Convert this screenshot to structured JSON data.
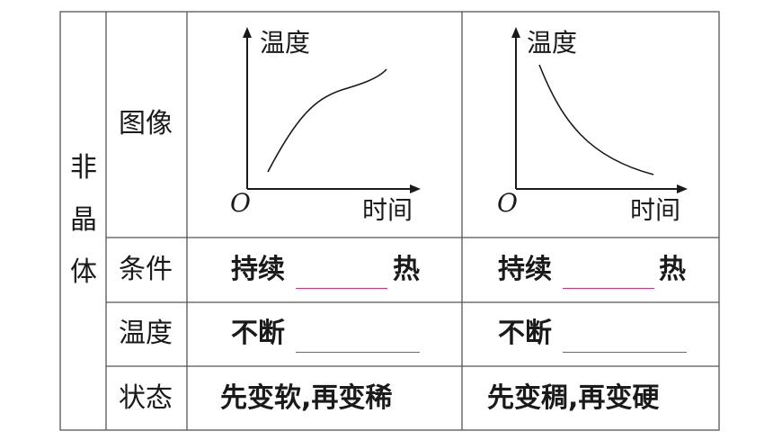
{
  "row_group_label": [
    "非",
    "晶",
    "体"
  ],
  "rows": {
    "image": "图像",
    "condition": "条件",
    "temperature": "温度",
    "state": "状态"
  },
  "graph_left": {
    "y_axis": "温度",
    "x_axis": "时间",
    "origin": "O",
    "curve": "increasing"
  },
  "graph_right": {
    "y_axis": "温度",
    "x_axis": "时间",
    "origin": "O",
    "curve": "decreasing"
  },
  "condition": {
    "left_prefix": "持续",
    "left_suffix": "热",
    "right_prefix": "持续",
    "right_suffix": "热"
  },
  "temperature": {
    "left_prefix": "不断",
    "right_prefix": "不断"
  },
  "state": {
    "left": "先变软,再变稀",
    "right": "先变稠,再变硬"
  },
  "colors": {
    "line": "#1a1a1a",
    "grid": "#555555",
    "blank": "#c8387a"
  }
}
